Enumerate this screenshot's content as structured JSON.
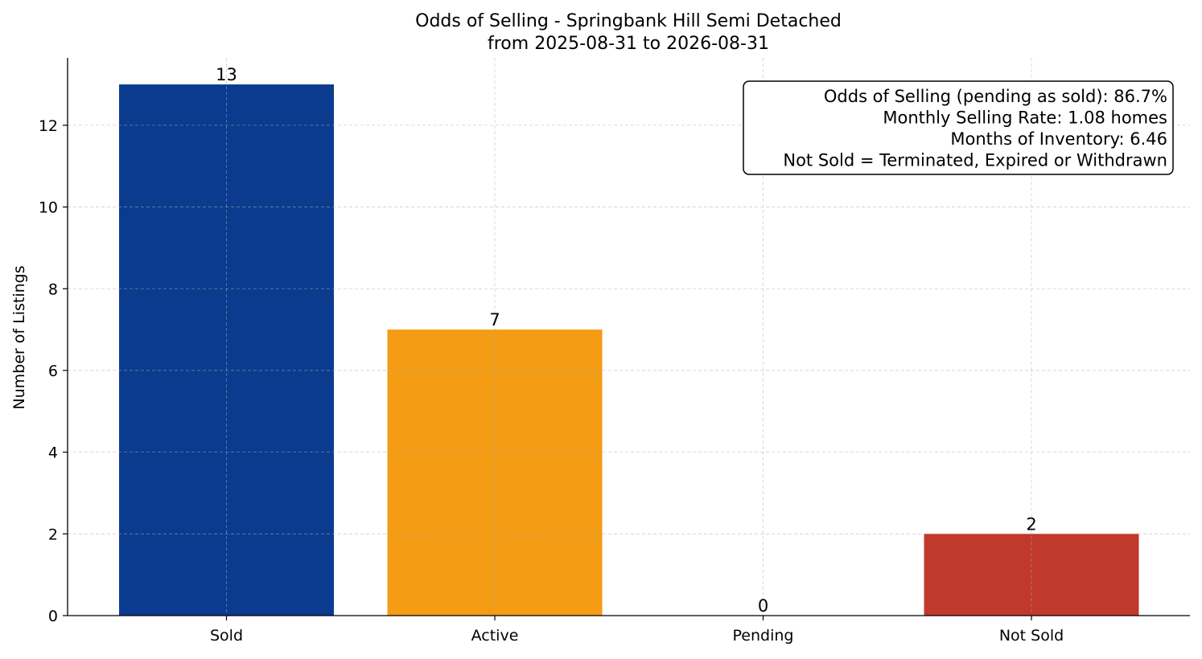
{
  "chart_data": {
    "type": "bar",
    "title": [
      "Odds of Selling - Springbank Hill Semi Detached",
      "from 2025-08-31 to 2026-08-31"
    ],
    "xlabel": "",
    "ylabel": "Number of Listings",
    "categories": [
      "Sold",
      "Active",
      "Pending",
      "Not Sold"
    ],
    "values": [
      13,
      7,
      0,
      2
    ],
    "colors": [
      "#0b3b8f",
      "#f39c14",
      "#f39c14",
      "#c0392b"
    ],
    "ylim": [
      0,
      13.65
    ],
    "yticks": [
      0,
      2,
      4,
      6,
      8,
      10,
      12
    ],
    "grid": true,
    "info_box": {
      "placement": "top-right",
      "lines": [
        "Odds of Selling (pending as sold): 86.7%",
        "Monthly Selling Rate: 1.08 homes",
        "Months of Inventory: 6.46",
        "Not Sold = Terminated, Expired or Withdrawn"
      ]
    }
  }
}
